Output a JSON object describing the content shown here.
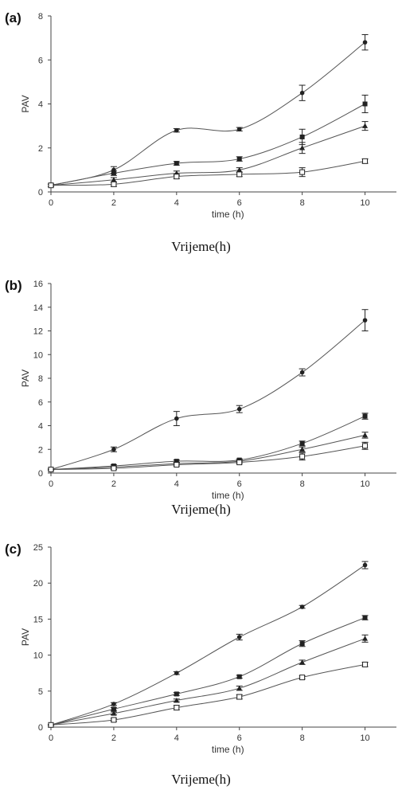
{
  "chart_data": [
    {
      "type": "line",
      "panel_label": "(a)",
      "xlabel": "time (h)",
      "ylabel": "PAV",
      "caption": "Vrijeme(h)",
      "x": [
        0,
        2,
        4,
        6,
        8,
        10
      ],
      "xlim": [
        0,
        11
      ],
      "ylim": [
        0,
        8
      ],
      "xticks": [
        "0",
        "2",
        "4",
        "6",
        "8",
        "10"
      ],
      "yticks": [
        "0",
        "2",
        "4",
        "6",
        "8"
      ],
      "series": [
        {
          "marker": "circle",
          "values": [
            0.3,
            1.0,
            2.8,
            2.85,
            4.5,
            6.8
          ],
          "errors": [
            0.05,
            0.15,
            0.08,
            0.08,
            0.35,
            0.35
          ]
        },
        {
          "marker": "square",
          "values": [
            0.3,
            0.85,
            1.3,
            1.5,
            2.5,
            4.0
          ],
          "errors": [
            0.05,
            0.1,
            0.08,
            0.1,
            0.35,
            0.4
          ]
        },
        {
          "marker": "triangle",
          "values": [
            0.3,
            0.55,
            0.85,
            1.0,
            2.0,
            3.0
          ],
          "errors": [
            0.05,
            0.1,
            0.1,
            0.1,
            0.25,
            0.2
          ]
        },
        {
          "marker": "open-square",
          "values": [
            0.3,
            0.35,
            0.7,
            0.8,
            0.9,
            1.4
          ],
          "errors": [
            0.05,
            0.1,
            0.1,
            0.1,
            0.2,
            0.1
          ]
        }
      ]
    },
    {
      "type": "line",
      "panel_label": "(b)",
      "xlabel": "time (h)",
      "ylabel": "PAV",
      "caption": "Vrijeme(h)",
      "x": [
        0,
        2,
        4,
        6,
        8,
        10
      ],
      "xlim": [
        0,
        11
      ],
      "ylim": [
        0,
        16
      ],
      "xticks": [
        "0",
        "2",
        "4",
        "6",
        "8",
        "10"
      ],
      "yticks": [
        "0",
        "2",
        "4",
        "6",
        "8",
        "10",
        "12",
        "14",
        "16"
      ],
      "series": [
        {
          "marker": "circle",
          "values": [
            0.3,
            2.0,
            4.6,
            5.4,
            8.5,
            12.9
          ],
          "errors": [
            0.05,
            0.2,
            0.6,
            0.3,
            0.3,
            0.9
          ]
        },
        {
          "marker": "square",
          "values": [
            0.3,
            0.6,
            1.0,
            1.1,
            2.5,
            4.8
          ],
          "errors": [
            0.05,
            0.1,
            0.1,
            0.1,
            0.2,
            0.25
          ]
        },
        {
          "marker": "triangle",
          "values": [
            0.3,
            0.5,
            0.8,
            1.0,
            2.0,
            3.2
          ],
          "errors": [
            0.05,
            0.1,
            0.1,
            0.1,
            0.2,
            0.25
          ]
        },
        {
          "marker": "open-square",
          "values": [
            0.3,
            0.4,
            0.7,
            0.9,
            1.4,
            2.3
          ],
          "errors": [
            0.05,
            0.1,
            0.1,
            0.1,
            0.3,
            0.3
          ]
        }
      ]
    },
    {
      "type": "line",
      "panel_label": "(c)",
      "xlabel": "time (h)",
      "ylabel": "PAV",
      "caption": "Vrijeme(h)",
      "x": [
        0,
        2,
        4,
        6,
        8,
        10
      ],
      "xlim": [
        0,
        11
      ],
      "ylim": [
        0,
        25
      ],
      "xticks": [
        "0",
        "2",
        "4",
        "6",
        "8",
        "10"
      ],
      "yticks": [
        "0",
        "5",
        "10",
        "15",
        "20",
        "25"
      ],
      "series": [
        {
          "marker": "circle",
          "values": [
            0.3,
            3.2,
            7.5,
            12.5,
            16.7,
            22.5
          ],
          "errors": [
            0.05,
            0.2,
            0.2,
            0.4,
            0.2,
            0.5
          ]
        },
        {
          "marker": "square",
          "values": [
            0.3,
            2.5,
            4.6,
            7.0,
            11.6,
            15.2
          ],
          "errors": [
            0.05,
            0.2,
            0.2,
            0.2,
            0.4,
            0.3
          ]
        },
        {
          "marker": "triangle",
          "values": [
            0.3,
            1.9,
            3.7,
            5.4,
            9.0,
            12.3
          ],
          "errors": [
            0.05,
            0.2,
            0.2,
            0.3,
            0.3,
            0.5
          ]
        },
        {
          "marker": "open-square",
          "values": [
            0.3,
            1.0,
            2.7,
            4.2,
            6.9,
            8.7
          ],
          "errors": [
            0.05,
            0.2,
            0.3,
            0.3,
            0.2,
            0.3
          ]
        }
      ]
    }
  ]
}
